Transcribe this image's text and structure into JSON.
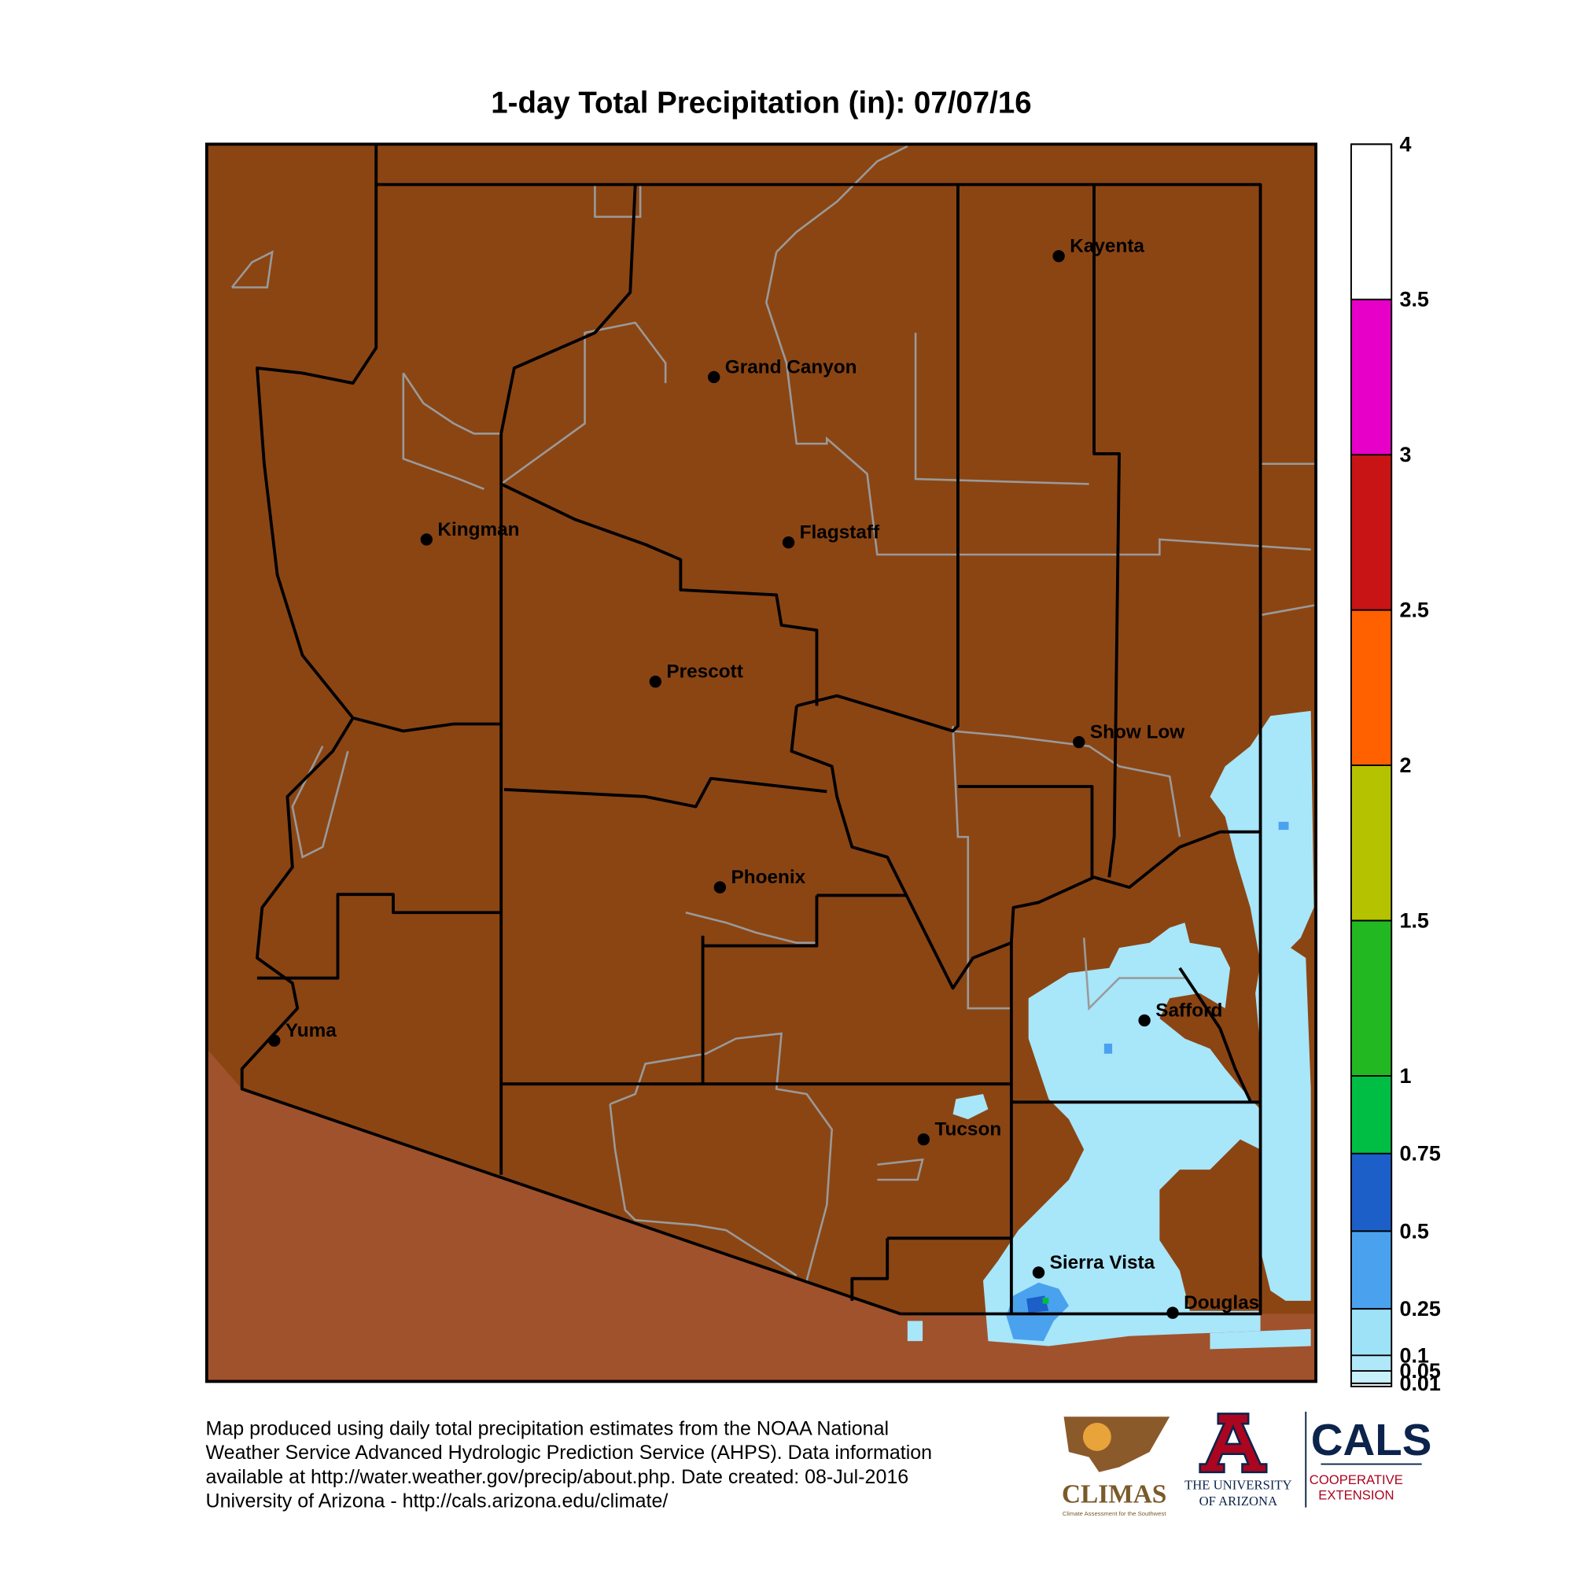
{
  "title": "1-day Total Precipitation (in): 07/07/16",
  "cities": [
    "Kayenta",
    "Grand Canyon",
    "Kingman",
    "Flagstaff",
    "Prescott",
    "Show Low",
    "Phoenix",
    "Safford",
    "Yuma",
    "Tucson",
    "Sierra Vista",
    "Douglas"
  ],
  "colorbar": {
    "ylim": [
      0,
      4
    ],
    "bins": [
      0.01,
      0.05,
      0.1,
      0.25,
      0.5,
      0.75,
      1,
      1.5,
      2,
      2.5,
      3,
      3.5,
      4
    ],
    "colors": [
      "#c8f0fb",
      "#b0e8fa",
      "#9ee2f8",
      "#4aa2ee",
      "#1c5fc8",
      "#00be44",
      "#22b822",
      "#b5c200",
      "#ff6000",
      "#c81414",
      "#e600c8",
      "#ffffff"
    ],
    "yticks": [
      0.01,
      0.05,
      0.1,
      0.25,
      0.5,
      0.75,
      1,
      1.5,
      2,
      2.5,
      3,
      3.5,
      4
    ]
  },
  "footer": [
    "Map produced using daily total precipitation estimates from the NOAA National",
    "Weather Service Advanced Hydrologic Prediction Service (AHPS). Data information",
    "available at http://water.weather.gov/precip/about.php. Date created: 08-Jul-2016",
    "University of Arizona - http://cals.arizona.edu/climate/"
  ],
  "logos": {
    "climas": "CLIMAS",
    "climas_sub": "Climate Assessment for the Southwest",
    "ua_line1": "THE UNIVERSITY",
    "ua_line2": "OF ARIZONA",
    "cals": "CALS",
    "cals_line1": "COOPERATIVE",
    "cals_line2": "EXTENSION"
  }
}
